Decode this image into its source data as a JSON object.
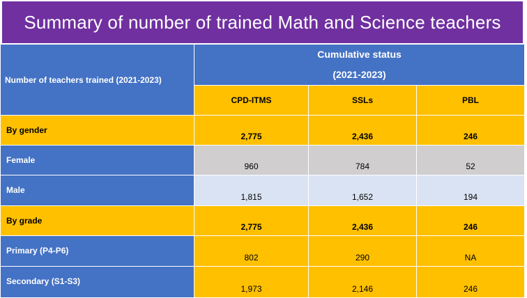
{
  "title": "Summary of number of trained Math and Science teachers",
  "header": {
    "row_label": "Number of teachers trained (2021-2023)",
    "group_title": "Cumulative status",
    "group_period": "(2021-2023)",
    "columns": [
      "CPD-ITMS",
      "SSLs",
      "PBL"
    ]
  },
  "rows": [
    {
      "label": "By gender",
      "values": [
        "2,775",
        "2,436",
        "246"
      ]
    },
    {
      "label": "Female",
      "values": [
        "960",
        "784",
        "52"
      ]
    },
    {
      "label": "Male",
      "values": [
        "1,815",
        "1,652",
        "194"
      ]
    },
    {
      "label": "By grade",
      "values": [
        "2,775",
        "2,436",
        "246"
      ]
    },
    {
      "label": "Primary (P4-P6)",
      "values": [
        "802",
        "290",
        "NA"
      ]
    },
    {
      "label": "Secondary (S1-S3)",
      "values": [
        "1,973",
        "2,146",
        "246"
      ]
    }
  ],
  "colors": {
    "banner": "#7030a0",
    "header_blue": "#4472c4",
    "gold": "#ffc000",
    "grey": "#d0cece",
    "light_blue": "#dae3f3"
  }
}
